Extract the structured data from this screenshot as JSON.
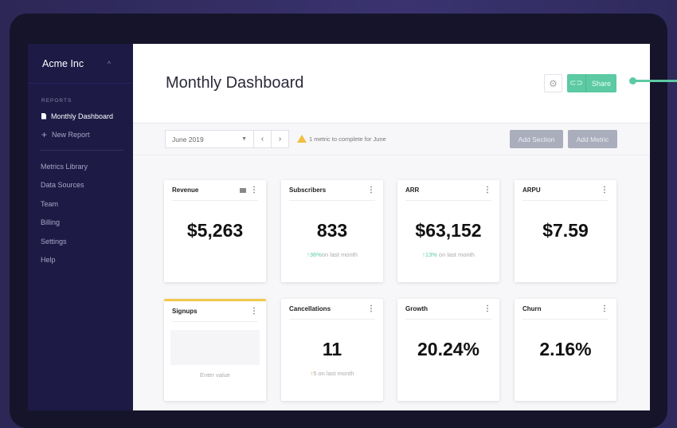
{
  "sidebar": {
    "org": "Acme Inc",
    "section": "REPORTS",
    "active_report": "Monthly Dashboard",
    "new_report": "New Report",
    "nav": [
      "Metrics Library",
      "Data Sources",
      "Team",
      "Billing",
      "Settings",
      "Help"
    ]
  },
  "header": {
    "title": "Monthly Dashboard",
    "share_label": "Share"
  },
  "toolbar": {
    "month": "June 2019",
    "warning": "1 metric to complete for June",
    "add_section": "Add Section",
    "add_metric": "Add Metric"
  },
  "cards": [
    {
      "title": "Revenue",
      "value": "$5,263"
    },
    {
      "title": "Subscribers",
      "value": "833",
      "change": "36%",
      "change_text": "on last month"
    },
    {
      "title": "ARR",
      "value": "$63,152",
      "change": "13%",
      "change_text": " on last month"
    },
    {
      "title": "ARPU",
      "value": "$7.59"
    },
    {
      "title": "Signups",
      "placeholder": "Enter value"
    },
    {
      "title": "Cancellations",
      "value": "11",
      "change": "5",
      "change_text": " on last month"
    },
    {
      "title": "Growth",
      "value": "20.24%"
    },
    {
      "title": "Churn",
      "value": "2.16%"
    }
  ],
  "colors": {
    "accent": "#5ccaa3",
    "sidebar": "#1d1a45",
    "warning": "#f2c94c"
  }
}
